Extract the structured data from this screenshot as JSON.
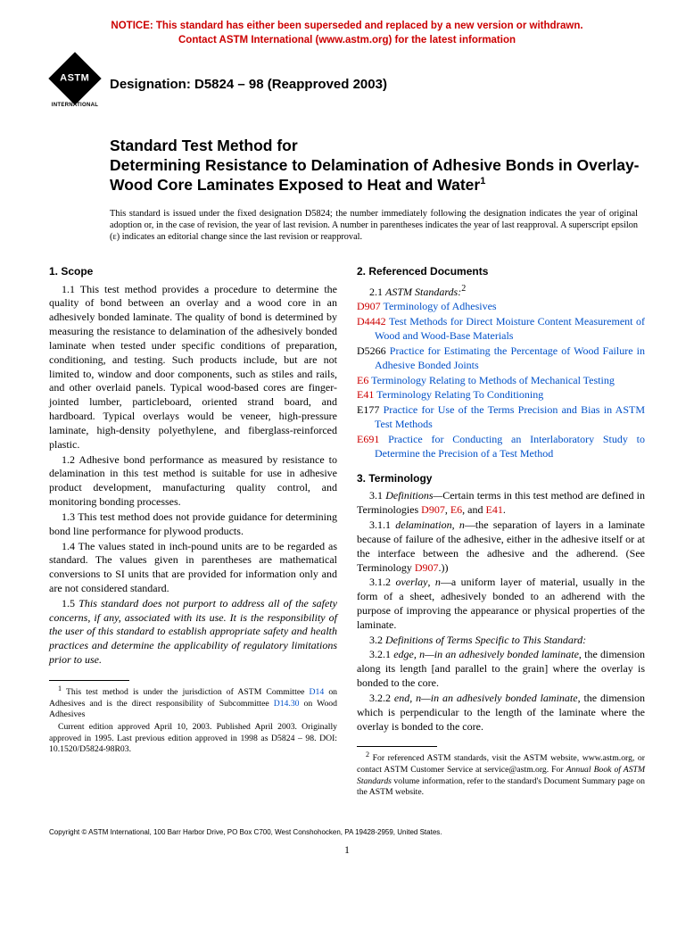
{
  "notice": {
    "line1": "NOTICE: This standard has either been superseded and replaced by a new version or withdrawn.",
    "line2": "Contact ASTM International (www.astm.org) for the latest information",
    "color": "#cc0000"
  },
  "logo": {
    "main": "ASTM",
    "sub": "INTERNATIONAL"
  },
  "designation": "Designation: D5824 – 98 (Reapproved 2003)",
  "title": {
    "lead": "Standard Test Method for",
    "main": "Determining Resistance to Delamination of Adhesive Bonds in Overlay-Wood Core Laminates Exposed to Heat and Water",
    "sup": "1"
  },
  "issuance": "This standard is issued under the fixed designation D5824; the number immediately following the designation indicates the year of original adoption or, in the case of revision, the year of last revision. A number in parentheses indicates the year of last reapproval. A superscript epsilon (ε) indicates an editorial change since the last revision or reapproval.",
  "scope": {
    "head": "1. Scope",
    "p11": "1.1 This test method provides a procedure to determine the quality of bond between an overlay and a wood core in an adhesively bonded laminate. The quality of bond is determined by measuring the resistance to delamination of the adhesively bonded laminate when tested under specific conditions of preparation, conditioning, and testing. Such products include, but are not limited to, window and door components, such as stiles and rails, and other overlaid panels. Typical wood-based cores are finger-jointed lumber, particleboard, oriented strand board, and hardboard. Typical overlays would be veneer, high-pressure laminate, high-density polyethylene, and fiberglass-reinforced plastic.",
    "p12": "1.2 Adhesive bond performance as measured by resistance to delamination in this test method is suitable for use in adhesive product development, manufacturing quality control, and monitoring bonding processes.",
    "p13": "1.3 This test method does not provide guidance for determining bond line performance for plywood products.",
    "p14": "1.4 The values stated in inch-pound units are to be regarded as standard. The values given in parentheses are mathematical conversions to SI units that are provided for information only and are not considered standard.",
    "p15": "1.5 This standard does not purport to address all of the safety concerns, if any, associated with its use. It is the responsibility of the user of this standard to establish appropriate safety and health practices and determine the applicability of regulatory limitations prior to use."
  },
  "refdocs": {
    "head": "2. Referenced Documents",
    "lead_num": "2.1",
    "lead_label": "ASTM Standards:",
    "lead_sup": "2",
    "items": [
      {
        "code": "D907",
        "code_color": "#cc0000",
        "text": "Terminology of Adhesives"
      },
      {
        "code": "D4442",
        "code_color": "#cc0000",
        "text": "Test Methods for Direct Moisture Content Measurement of Wood and Wood-Base Materials"
      },
      {
        "code": "D5266",
        "code_color": "#000000",
        "text": "Practice for Estimating the Percentage of Wood Failure in Adhesive Bonded Joints"
      },
      {
        "code": "E6",
        "code_color": "#cc0000",
        "text": "Terminology Relating to Methods of Mechanical Testing"
      },
      {
        "code": "E41",
        "code_color": "#cc0000",
        "text": "Terminology Relating To Conditioning"
      },
      {
        "code": "E177",
        "code_color": "#000000",
        "text": "Practice for Use of the Terms Precision and Bias in ASTM Test Methods"
      },
      {
        "code": "E691",
        "code_color": "#cc0000",
        "text": "Practice for Conducting an Interlaboratory Study to Determine the Precision of a Test Method"
      }
    ]
  },
  "terminology": {
    "head": "3. Terminology",
    "p31_a": "3.1 ",
    "p31_b": "Definitions—",
    "p31_c": "Certain terms in this test method are defined in Terminologies ",
    "p31_links": [
      "D907",
      "E6",
      "E41"
    ],
    "p311": "3.1.1 delamination, n—the separation of layers in a laminate because of failure of the adhesive, either in the adhesive itself or at the interface between the adhesive and the adherend. (See Terminology ",
    "p311_link": "D907",
    "p311_end": ".)",
    "p312": "3.1.2 overlay, n—a uniform layer of material, usually in the form of a sheet, adhesively bonded to an adherend with the purpose of improving the appearance or physical properties of the laminate.",
    "p32": "3.2 Definitions of Terms Specific to This Standard:",
    "p321": "3.2.1 edge, n—in an adhesively bonded laminate, the dimension along its length [and parallel to the grain] where the overlay is bonded to the core.",
    "p322": "3.2.2 end, n—in an adhesively bonded laminate, the dimension which is perpendicular to the length of the laminate where the overlay is bonded to the core."
  },
  "footnotes": {
    "f1a": "This test method is under the jurisdiction of ASTM Committee ",
    "f1a_link": "D14",
    "f1a_mid": " on Adhesives and is the direct responsibility of Subcommittee ",
    "f1a_link2": "D14.30",
    "f1a_end": " on Wood Adhesives",
    "f1b": "Current edition approved April 10, 2003. Published April 2003. Originally approved in 1995. Last previous edition approved in 1998 as D5824 – 98. DOI: 10.1520/D5824-98R03.",
    "f2": "For referenced ASTM standards, visit the ASTM website, www.astm.org, or contact ASTM Customer Service at service@astm.org. For Annual Book of ASTM Standards volume information, refer to the standard's Document Summary page on the ASTM website."
  },
  "copyright": "Copyright © ASTM International, 100 Barr Harbor Drive, PO Box C700, West Conshohocken, PA 19428-2959, United States.",
  "page_number": "1",
  "link_color": "#0050c8"
}
